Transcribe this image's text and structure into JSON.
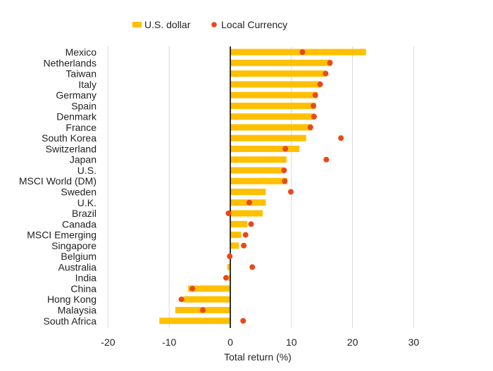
{
  "chart_data": {
    "type": "bar",
    "orientation": "horizontal",
    "title": "",
    "xlabel": "Total return (%)",
    "ylabel": "",
    "xlim": [
      -20,
      30
    ],
    "xticks": [
      -20,
      -10,
      0,
      10,
      20,
      30
    ],
    "xtick_labels": [
      "-20",
      "-10",
      "0",
      "10",
      "20",
      "30"
    ],
    "grid": true,
    "legend_position": "top",
    "categories": [
      "Mexico",
      "Netherlands",
      "Taiwan",
      "Italy",
      "Germany",
      "Spain",
      "Denmark",
      "France",
      "South Korea",
      "Switzerland",
      "Japan",
      "U.S.",
      "MSCI World (DM)",
      "Sweden",
      "U.K.",
      "Brazil",
      "Canada",
      "MSCI Emerging",
      "Singapore",
      "Belgium",
      "Australia",
      "India",
      "China",
      "Hong Kong",
      "Malaysia",
      "South Africa"
    ],
    "series": [
      {
        "name": "U.S. dollar",
        "kind": "bar",
        "color": "#FFC000",
        "values": [
          22.2,
          16.6,
          15.5,
          14.8,
          14.3,
          14.0,
          13.8,
          13.4,
          12.4,
          11.3,
          9.2,
          8.8,
          9.3,
          5.8,
          5.8,
          5.3,
          2.8,
          1.8,
          1.4,
          0.1,
          -0.5,
          -0.3,
          -6.9,
          -7.7,
          -9.0,
          -11.6
        ]
      },
      {
        "name": "Local Currency",
        "kind": "point",
        "color": "#E8481C",
        "values": [
          11.8,
          16.3,
          15.6,
          14.7,
          13.9,
          13.6,
          13.7,
          13.1,
          18.1,
          9.0,
          15.7,
          8.8,
          8.9,
          9.9,
          3.1,
          -0.3,
          3.4,
          2.5,
          2.2,
          -0.1,
          3.6,
          -0.7,
          -6.2,
          -8.0,
          -4.5,
          2.1
        ]
      }
    ]
  }
}
